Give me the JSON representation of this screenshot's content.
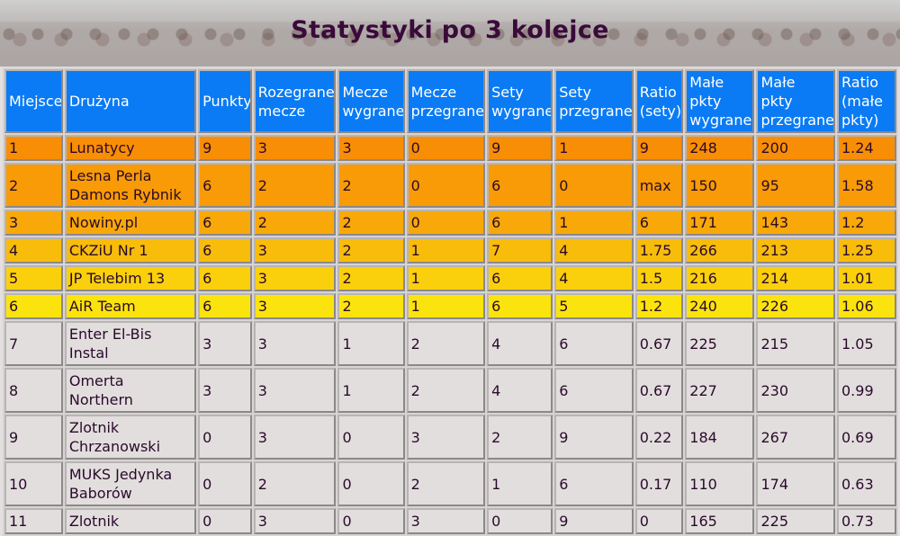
{
  "title": "Statystyki po 3 kolejce",
  "headers": [
    "Miejsce",
    "Drużyna",
    "Punkty",
    "Rozegrane mecze",
    "Mecze wygrane",
    "Mecze przegrane",
    "Sety wygrane",
    "Sety przegrane",
    "Ratio (sety)",
    "Małe pkty wygrane",
    "Małe pkty przegrane",
    "Ratio (małe pkty)"
  ],
  "rows": [
    [
      "1",
      "Lunatycy",
      "9",
      "3",
      "3",
      "0",
      "9",
      "1",
      "9",
      "248",
      "200",
      "1.24"
    ],
    [
      "2",
      "Lesna Perla Damons Rybnik",
      "6",
      "2",
      "2",
      "0",
      "6",
      "0",
      "max",
      "150",
      "95",
      "1.58"
    ],
    [
      "3",
      "Nowiny.pl",
      "6",
      "2",
      "2",
      "0",
      "6",
      "1",
      "6",
      "171",
      "143",
      "1.2"
    ],
    [
      "4",
      "CKZiU Nr 1",
      "6",
      "3",
      "2",
      "1",
      "7",
      "4",
      "1.75",
      "266",
      "213",
      "1.25"
    ],
    [
      "5",
      "JP Telebim 13",
      "6",
      "3",
      "2",
      "1",
      "6",
      "4",
      "1.5",
      "216",
      "214",
      "1.01"
    ],
    [
      "6",
      "AiR Team",
      "6",
      "3",
      "2",
      "1",
      "6",
      "5",
      "1.2",
      "240",
      "226",
      "1.06"
    ],
    [
      "7",
      "Enter El-Bis Instal",
      "3",
      "3",
      "1",
      "2",
      "4",
      "6",
      "0.67",
      "225",
      "215",
      "1.05"
    ],
    [
      "8",
      "Omerta Northern",
      "3",
      "3",
      "1",
      "2",
      "4",
      "6",
      "0.67",
      "227",
      "230",
      "0.99"
    ],
    [
      "9",
      "Zlotnik Chrzanowski",
      "0",
      "3",
      "0",
      "3",
      "2",
      "9",
      "0.22",
      "184",
      "267",
      "0.69"
    ],
    [
      "10",
      "MUKS Jedynka Baborów",
      "0",
      "2",
      "0",
      "2",
      "1",
      "6",
      "0.17",
      "110",
      "174",
      "0.63"
    ],
    [
      "11",
      "Zlotnik",
      "0",
      "3",
      "0",
      "3",
      "0",
      "9",
      "0",
      "165",
      "225",
      "0.73"
    ]
  ],
  "colors": {
    "header_bg": "#0a7bf4",
    "title": "#3a0a3a",
    "row_gray": "#e2dede"
  }
}
